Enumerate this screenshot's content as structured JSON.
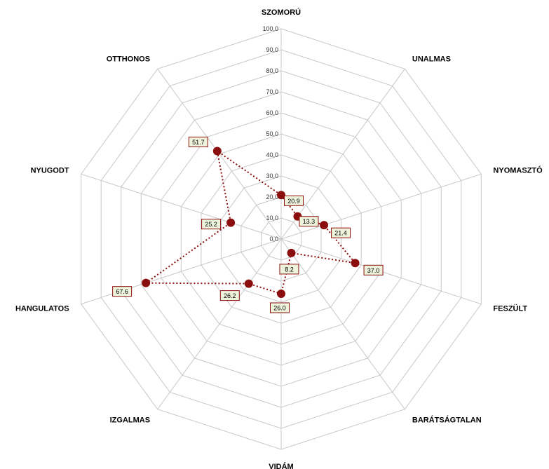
{
  "chart_data": {
    "type": "radar",
    "categories": [
      "SZOMORÚ",
      "UNALMAS",
      "NYOMASZTÓ",
      "FESZÜLT",
      "BARÁTSÁGTALAN",
      "VIDÁM",
      "IZGALMAS",
      "HANGULATOS",
      "NYUGODT",
      "OTTHONOS"
    ],
    "series": [
      {
        "values": [
          20.9,
          13.3,
          21.4,
          37.0,
          8.2,
          26.0,
          26.2,
          67.6,
          25.2,
          51.7
        ],
        "color": "#8b0e0e",
        "line_style": "dotted"
      }
    ],
    "data_labels": [
      "20.9",
      "13.3",
      "21.4",
      "37.0",
      "8.2",
      "26.0",
      "26.2",
      "67.6",
      "25.2",
      "51.7"
    ],
    "radial_ticks": [
      "0,0",
      "10,0",
      "20,0",
      "30,0",
      "40,0",
      "50,0",
      "60,0",
      "70,0",
      "80,0",
      "90,0",
      "100,0"
    ],
    "rlim": [
      0,
      100
    ],
    "grid": true,
    "colors": {
      "grid": "#c8c8c8",
      "marker": "#8b0e0e",
      "label_fill": "#eef3dc",
      "label_border": "#8b0e0e"
    }
  }
}
